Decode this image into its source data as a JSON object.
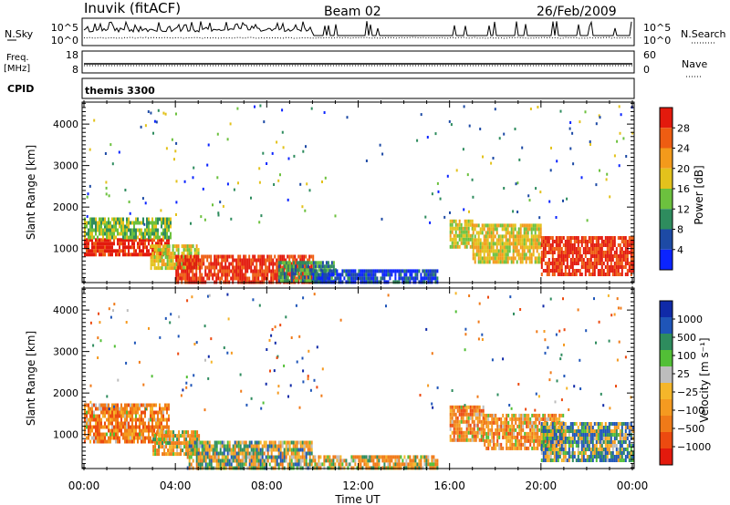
{
  "header": {
    "station": "Inuvik (fitACF)",
    "beam": "Beam 02",
    "date": "26/Feb/2009"
  },
  "noise_panel": {
    "left_label": "N.Sky",
    "right_label": "N.Search",
    "ticks": [
      "10^5",
      "10^0"
    ]
  },
  "freq_panel": {
    "left_label_1": "Freq.",
    "left_label_2": "[MHz]",
    "left_ticks": [
      "18",
      "8"
    ],
    "right_label": "Nave",
    "right_ticks": [
      "60",
      "0"
    ]
  },
  "cpid_panel": {
    "label": "CPID",
    "value": "themis 3300"
  },
  "x_axis_label": "Time UT",
  "chart_data": [
    {
      "type": "heatmap",
      "name": "power",
      "ylabel": "Slant Range [km]",
      "ylim": [
        180,
        4530
      ],
      "yticks": [
        "1000",
        "2000",
        "3000",
        "4000"
      ],
      "xlim": [
        0,
        24
      ],
      "xticks": [
        "00:00",
        "04:00",
        "08:00",
        "12:00",
        "16:00",
        "20:00",
        "00:00"
      ],
      "colorbar": {
        "label": "Power [dB]",
        "levels": [
          0,
          4,
          8,
          12,
          16,
          20,
          24,
          28,
          32
        ],
        "tick_labels": [
          "4",
          "8",
          "12",
          "16",
          "20",
          "24",
          "28"
        ],
        "colors": [
          "#0b24ff",
          "#1d4aa5",
          "#2e8c5e",
          "#6cc13e",
          "#e3c21c",
          "#f39a1b",
          "#ee5d12",
          "#e31a0d"
        ]
      },
      "regions": [
        {
          "t": [
            0,
            3.7
          ],
          "r": [
            820,
            1250
          ],
          "level": 30
        },
        {
          "t": [
            0,
            3.8
          ],
          "r": [
            1250,
            1750
          ],
          "level": 14
        },
        {
          "t": [
            2.9,
            5.0
          ],
          "r": [
            500,
            1100
          ],
          "level": 18
        },
        {
          "t": [
            4.0,
            10.0
          ],
          "r": [
            200,
            850
          ],
          "level": 29
        },
        {
          "t": [
            8.5,
            11.0
          ],
          "r": [
            200,
            700
          ],
          "level": 10
        },
        {
          "t": [
            10.0,
            15.5
          ],
          "r": [
            200,
            500
          ],
          "level": 5
        },
        {
          "t": [
            16.0,
            17.0
          ],
          "r": [
            1000,
            1700
          ],
          "level": 17
        },
        {
          "t": [
            17.0,
            20.0
          ],
          "r": [
            700,
            1600
          ],
          "level": 19
        },
        {
          "t": [
            20.0,
            24.0
          ],
          "r": [
            380,
            1300
          ],
          "level": 29
        }
      ]
    },
    {
      "type": "heatmap",
      "name": "velocity",
      "ylabel": "Slant Range [km]",
      "ylim": [
        180,
        4530
      ],
      "yticks": [
        "1000",
        "2000",
        "3000",
        "4000"
      ],
      "xlim": [
        0,
        24
      ],
      "xticks": [
        "00:00",
        "04:00",
        "08:00",
        "12:00",
        "16:00",
        "20:00",
        "00:00"
      ],
      "colorbar": {
        "label": "Velocity [m s⁻¹]",
        "tick_labels": [
          "1000",
          "500",
          "100",
          "25",
          "−25",
          "−100",
          "−500",
          "−1000"
        ],
        "colors": [
          "#102aa8",
          "#1f55b8",
          "#2e8c5e",
          "#52bf36",
          "#bdbdbd",
          "#f5b62a",
          "#f59a20",
          "#f07a18",
          "#ec4a10",
          "#e31a0d"
        ]
      },
      "regions": [
        {
          "t": [
            0,
            3.7
          ],
          "r": [
            820,
            1750
          ],
          "level": -300
        },
        {
          "t": [
            3.0,
            5.0
          ],
          "r": [
            500,
            1100
          ],
          "level": -150
        },
        {
          "t": [
            4.5,
            10.0
          ],
          "r": [
            200,
            850
          ],
          "level": 0
        },
        {
          "t": [
            10.0,
            15.5
          ],
          "r": [
            200,
            500
          ],
          "level": -150
        },
        {
          "t": [
            16.0,
            17.5
          ],
          "r": [
            900,
            1700
          ],
          "level": -300
        },
        {
          "t": [
            17.5,
            21.0
          ],
          "r": [
            700,
            1500
          ],
          "level": -250
        },
        {
          "t": [
            20.0,
            24.0
          ],
          "r": [
            380,
            1300
          ],
          "level": 150
        }
      ]
    }
  ]
}
